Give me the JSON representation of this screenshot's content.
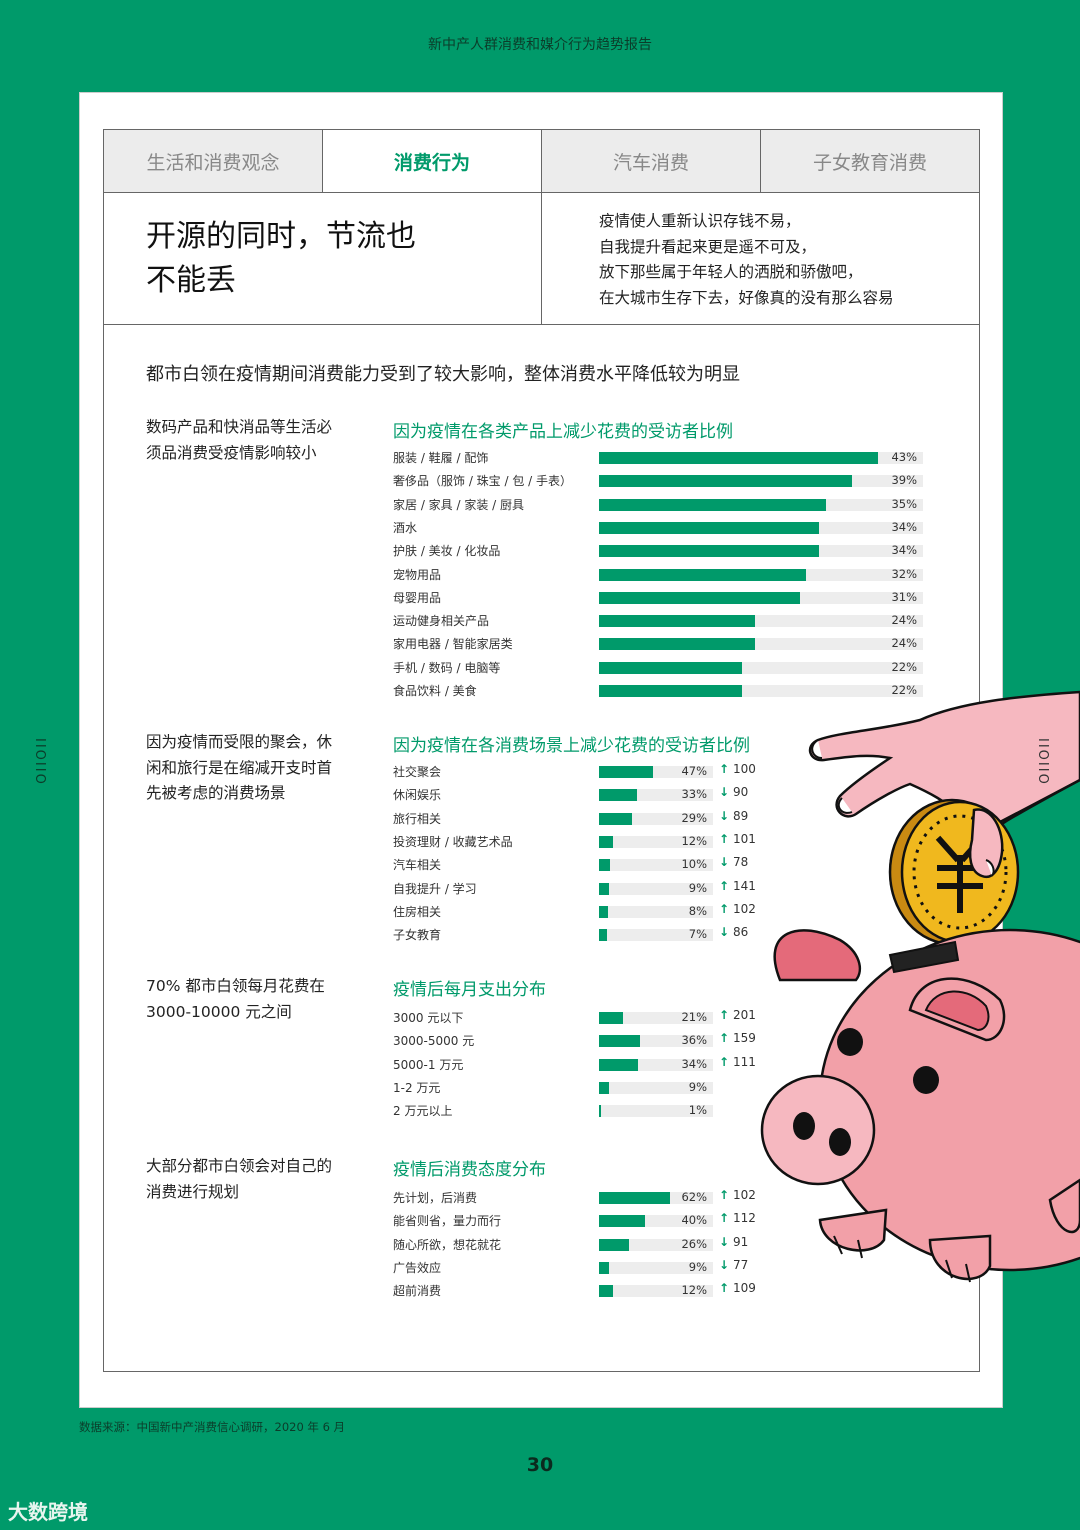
{
  "report_title": "新中产人群消费和媒介行为趋势报告",
  "side_deco": "IIOIIO",
  "tabs": [
    {
      "label": "生活和消费观念",
      "active": false
    },
    {
      "label": "消费行为",
      "active": true
    },
    {
      "label": "汽车消费",
      "active": false
    },
    {
      "label": "子女教育消费",
      "active": false
    }
  ],
  "headline": {
    "line1": "开源的同时，节流也",
    "line2": "不能丢"
  },
  "intro": [
    "疫情使人重新认识存钱不易，",
    "自我提升看起来更是遥不可及，",
    "放下那些属于年轻人的洒脱和骄傲吧，",
    "在大城市生存下去，好像真的没有那么容易"
  ],
  "subheadline": "都市白领在疫情期间消费能力受到了较大影响，整体消费水平降低较为明显",
  "section_descs": [
    "数码产品和快消品等生活必须品消费受疫情影响较小",
    "因为疫情而受限的聚会，休闲和旅行是在缩减开支时首先被考虑的消费场景",
    "70% 都市白领每月花费在 3000-10000 元之间",
    "大部分都市白领会对自己的消费进行规划"
  ],
  "chart_data": [
    {
      "type": "bar",
      "title": "因为疫情在各类产品上减少花费的受访者比例",
      "categories": [
        "服装 / 鞋履 / 配饰",
        "奢侈品（服饰 / 珠宝 / 包 / 手表）",
        "家居 / 家具 / 家装 / 厨具",
        "酒水",
        "护肤 / 美妆 / 化妆品",
        "宠物用品",
        "母婴用品",
        "运动健身相关产品",
        "家用电器 / 智能家居类",
        "手机 / 数码 / 电脑等",
        "食品饮料 / 美食"
      ],
      "values": [
        43,
        39,
        35,
        34,
        34,
        32,
        31,
        24,
        24,
        22,
        22
      ],
      "value_labels": [
        "43%",
        "39%",
        "35%",
        "34%",
        "34%",
        "32%",
        "31%",
        "24%",
        "24%",
        "22%",
        "22%"
      ],
      "xlim": [
        0,
        50
      ]
    },
    {
      "type": "bar",
      "title": "因为疫情在各消费场景上减少花费的受访者比例",
      "categories": [
        "社交聚会",
        "休闲娱乐",
        "旅行相关",
        "投资理财 / 收藏艺术品",
        "汽车相关",
        "自我提升 / 学习",
        "住房相关",
        "子女教育"
      ],
      "values": [
        47,
        33,
        29,
        12,
        10,
        9,
        8,
        7
      ],
      "value_labels": [
        "47%",
        "33%",
        "29%",
        "12%",
        "10%",
        "9%",
        "8%",
        "7%"
      ],
      "index_values": [
        100,
        90,
        89,
        101,
        78,
        141,
        102,
        86
      ],
      "index_labels": [
        "100",
        "90",
        "89",
        "101",
        "78",
        "141",
        "102",
        "86"
      ],
      "index_direction": [
        "up",
        "down",
        "down",
        "up",
        "down",
        "up",
        "up",
        "down"
      ],
      "xlim": [
        0,
        100
      ]
    },
    {
      "type": "bar",
      "title": "疫情后每月支出分布",
      "categories": [
        "3000 元以下",
        "3000-5000 元",
        "5000-1 万元",
        "1-2 万元",
        "2 万元以上"
      ],
      "values": [
        21,
        36,
        34,
        9,
        1
      ],
      "value_labels": [
        "21%",
        "36%",
        "34%",
        "9%",
        "1%"
      ],
      "index_values": [
        201,
        159,
        111,
        null,
        null
      ],
      "index_labels": [
        "201",
        "159",
        "111",
        "",
        ""
      ],
      "index_direction": [
        "up",
        "up",
        "up",
        "",
        ""
      ],
      "xlim": [
        0,
        100
      ]
    },
    {
      "type": "bar",
      "title": "疫情后消费态度分布",
      "categories": [
        "先计划，后消费",
        "能省则省，量力而行",
        "随心所欲，想花就花",
        "广告效应",
        "超前消费"
      ],
      "values": [
        62,
        40,
        26,
        9,
        12
      ],
      "value_labels": [
        "62%",
        "40%",
        "26%",
        "9%",
        "12%"
      ],
      "index_values": [
        102,
        112,
        91,
        77,
        109
      ],
      "index_labels": [
        "102",
        "112",
        "91",
        "77",
        "109"
      ],
      "index_direction": [
        "up",
        "up",
        "down",
        "down",
        "up"
      ],
      "xlim": [
        0,
        100
      ]
    }
  ],
  "arrows": {
    "up": "↑",
    "down": "↓"
  },
  "source": "数据来源：中国新中产消费信心调研，2020 年 6 月",
  "page_number": "30",
  "watermark": "大数跨境",
  "colors": {
    "brand_green": "#009a6a",
    "track_gray": "#ededed",
    "pig_pink": "#f2a0a8",
    "coin_gold": "#f0b81e"
  },
  "illustration": "hand-dropping-coin-into-piggy-bank-icon"
}
